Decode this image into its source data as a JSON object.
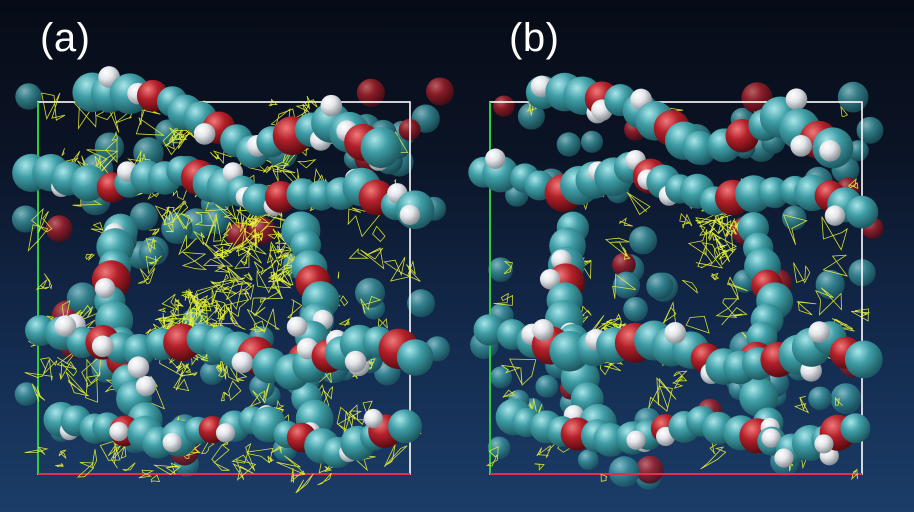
{
  "panels": [
    {
      "id": "a",
      "label": "(a)",
      "mesh_density": "high"
    },
    {
      "id": "b",
      "label": "(b)",
      "mesh_density": "low"
    }
  ],
  "colors": {
    "background_top": "#060b16",
    "background_bottom": "#1b3d68",
    "carbon": "#3f9ea6",
    "oxygen": "#b3202a",
    "hydrogen": "#e4e6ea",
    "mesh": "#e8f23a",
    "box": "#ffffff",
    "box_accent_green": "#2ecc40",
    "box_accent_red": "#e0304a"
  }
}
